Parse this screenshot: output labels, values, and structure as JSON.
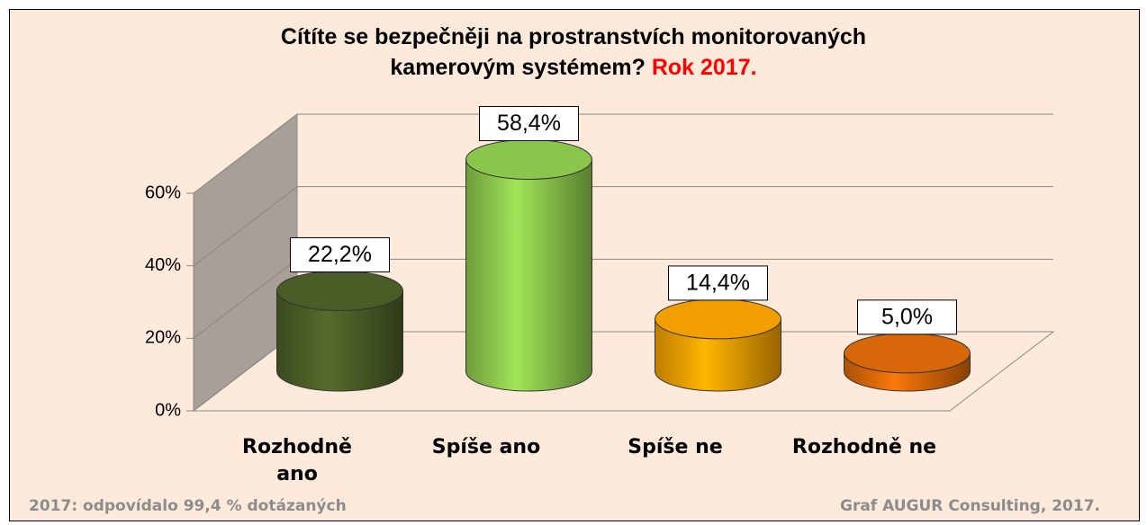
{
  "chart_data": {
    "type": "bar3d",
    "title": "Cítíte se bezpečněji na prostranstvích monitorovaných kamerovým systémem?",
    "title_highlight": "Rok 2017.",
    "categories": [
      "Rozhodně ano",
      "Spíše ano",
      "Spíše ne",
      "Rozhodně ne"
    ],
    "values": [
      22.2,
      58.4,
      14.4,
      5.0
    ],
    "value_labels": [
      "22,2%",
      "58,4%",
      "14,4%",
      "5,0%"
    ],
    "colors": [
      "#4f6228",
      "#92d050",
      "#ffa500",
      "#e36c09"
    ],
    "ylim": [
      0,
      60
    ],
    "yticks": [
      {
        "value": 0,
        "label": "0%"
      },
      {
        "value": 20,
        "label": "20%"
      },
      {
        "value": 40,
        "label": "40%"
      },
      {
        "value": 60,
        "label": "60%"
      }
    ],
    "grid": true,
    "footnote_left": "2017: odpovídalo 99,4 % dotázaných",
    "footnote_right": "Graf AUGUR Consulting, 2017."
  }
}
